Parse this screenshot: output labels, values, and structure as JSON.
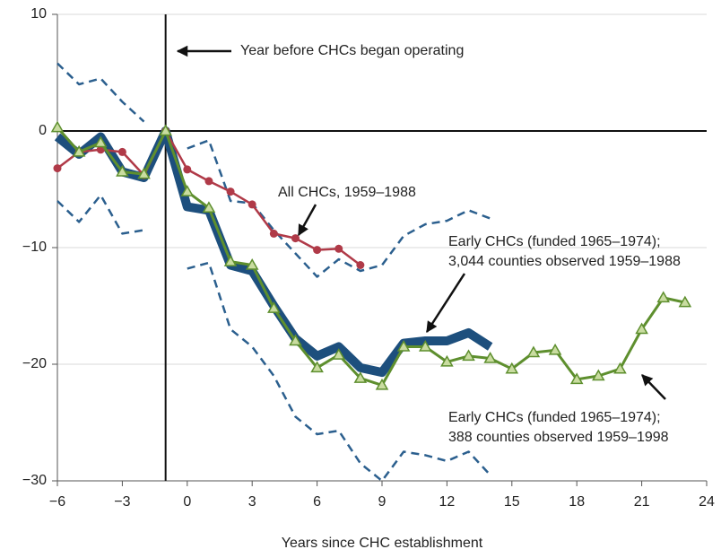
{
  "chart_data": {
    "type": "line",
    "xlabel": "Years since CHC establishment",
    "xlim": [
      -6,
      24
    ],
    "xticks": [
      {
        "value": -6,
        "label": "−6"
      },
      {
        "value": -3,
        "label": "−3"
      },
      0,
      3,
      6,
      9,
      12,
      15,
      18,
      21,
      24
    ],
    "ylim": [
      -30,
      10
    ],
    "yticks": [
      10,
      0,
      {
        "value": -10,
        "label": "−10"
      },
      {
        "value": -20,
        "label": "−20"
      },
      {
        "value": -30,
        "label": "−30"
      }
    ],
    "grid": true,
    "vline": -1,
    "hline": 0,
    "series": [
      {
        "color": "#2b5f8e",
        "style": "dashed",
        "width": 2.5,
        "marker": "none",
        "x": [
          -6,
          -5,
          -4,
          -3,
          -2,
          -1,
          0,
          1,
          2,
          3,
          4,
          5,
          6,
          7,
          8,
          9,
          10,
          11,
          12,
          13,
          14
        ],
        "values": [
          5.8,
          4,
          4.5,
          2.5,
          0.8,
          null,
          -1.5,
          -0.8,
          -6,
          -6.2,
          -8.5,
          -10.5,
          -12.5,
          -11,
          -12,
          -11.5,
          -9,
          -8,
          -7.7,
          -6.8,
          -7.5
        ]
      },
      {
        "color": "#2b5f8e",
        "style": "dashed",
        "width": 2.5,
        "marker": "none",
        "x": [
          -6,
          -5,
          -4,
          -3,
          -2,
          -1,
          0,
          1,
          2,
          3,
          4,
          5,
          6,
          7,
          8,
          9,
          10,
          11,
          12,
          13,
          14
        ],
        "values": [
          -6,
          -7.8,
          -5.5,
          -8.8,
          -8.5,
          null,
          -11.8,
          -11.3,
          -17,
          -18.5,
          -21,
          -24.5,
          -26,
          -25.7,
          -28.5,
          -30,
          -27.5,
          -27.8,
          -28.3,
          -27.5,
          -29.5
        ]
      },
      {
        "color": "#1d4f7d",
        "style": "solid",
        "width": 10,
        "marker": "none",
        "x": [
          -6,
          -5,
          -4,
          -3,
          -2,
          -1,
          0,
          1,
          2,
          3,
          4,
          5,
          6,
          7,
          8,
          9,
          10,
          11,
          12,
          13,
          14
        ],
        "values": [
          -0.5,
          -2,
          -0.5,
          -3.5,
          -4,
          0,
          -6.5,
          -6.8,
          -11.5,
          -12,
          -15,
          -17.8,
          -19.3,
          -18.5,
          -20.3,
          -20.7,
          -18.2,
          -18,
          -18,
          -17.3,
          -18.5
        ]
      },
      {
        "color": "#b03a48",
        "style": "solid",
        "width": 2.5,
        "marker": "circle",
        "x": [
          -6,
          -5,
          -4,
          -3,
          -2,
          -1,
          0,
          1,
          2,
          3,
          4,
          5,
          6,
          7,
          8
        ],
        "values": [
          -3.2,
          -1.8,
          -1.6,
          -1.8,
          -3.8,
          0,
          -3.3,
          -4.3,
          -5.2,
          -6.3,
          -8.8,
          -9.2,
          -10.2,
          -10.1,
          -11.5
        ]
      },
      {
        "color": "#5e8f2e",
        "style": "solid",
        "width": 3,
        "marker": "triangle",
        "x": [
          -6,
          -5,
          -4,
          -3,
          -2,
          -1,
          0,
          1,
          2,
          3,
          4,
          5,
          6,
          7,
          8,
          9,
          10,
          11,
          12,
          13,
          14,
          15,
          16,
          17,
          18,
          19,
          20,
          21,
          22,
          23
        ],
        "values": [
          0.3,
          -1.8,
          -1,
          -3.5,
          -3.7,
          0,
          -5.2,
          -6.6,
          -11.2,
          -11.5,
          -15.2,
          -18,
          -20.3,
          -19.2,
          -21.2,
          -21.8,
          -18.5,
          -18.5,
          -19.8,
          -19.3,
          -19.5,
          -20.4,
          -19,
          -18.8,
          -21.3,
          -21,
          -20.4,
          -17,
          -14.3,
          -14.7
        ]
      }
    ],
    "annotations": [
      {
        "lines": [
          "Year before CHCs began operating"
        ]
      },
      {
        "lines": [
          "All CHCs, 1959–1988"
        ]
      },
      {
        "lines": [
          "Early CHCs (funded 1965–1974);",
          "3,044 counties observed 1959–1988"
        ]
      },
      {
        "lines": [
          "Early CHCs (funded 1965–1974);",
          "388 counties observed 1959–1998"
        ]
      }
    ]
  }
}
